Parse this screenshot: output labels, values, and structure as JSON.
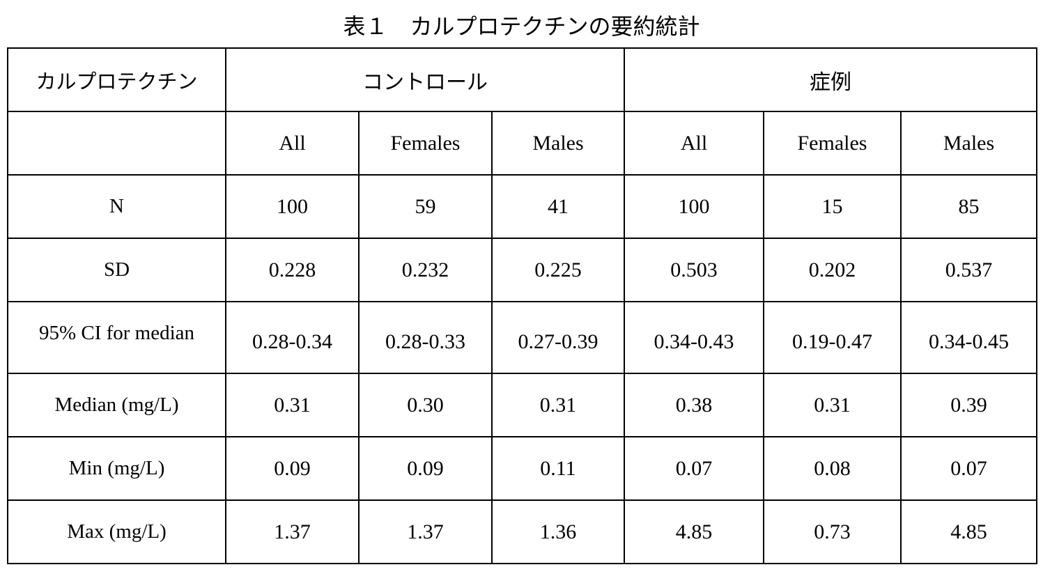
{
  "title": "表１　カルプロテクチンの要約統計",
  "table": {
    "header": {
      "label": "カルプロテクチン",
      "groups": [
        "コントロール",
        "症例"
      ]
    },
    "subheaders": [
      "All",
      "Females",
      "Males",
      "All",
      "Females",
      "Males"
    ],
    "rows": [
      [
        "N",
        "100",
        "59",
        "41",
        "100",
        "15",
        "85"
      ],
      [
        "SD",
        "0.228",
        "0.232",
        "0.225",
        "0.503",
        "0.202",
        "0.537"
      ],
      [
        "95% CI for median",
        "0.28-0.34",
        "0.28-0.33",
        "0.27-0.39",
        "0.34-0.43",
        "0.19-0.47",
        "0.34-0.45"
      ],
      [
        "Median (mg/L)",
        "0.31",
        "0.30",
        "0.31",
        "0.38",
        "0.31",
        "0.39"
      ],
      [
        "Min (mg/L)",
        "0.09",
        "0.09",
        "0.11",
        "0.07",
        "0.08",
        "0.07"
      ],
      [
        "Max (mg/L)",
        "1.37",
        "1.37",
        "1.36",
        "4.85",
        "0.73",
        "4.85"
      ]
    ]
  }
}
